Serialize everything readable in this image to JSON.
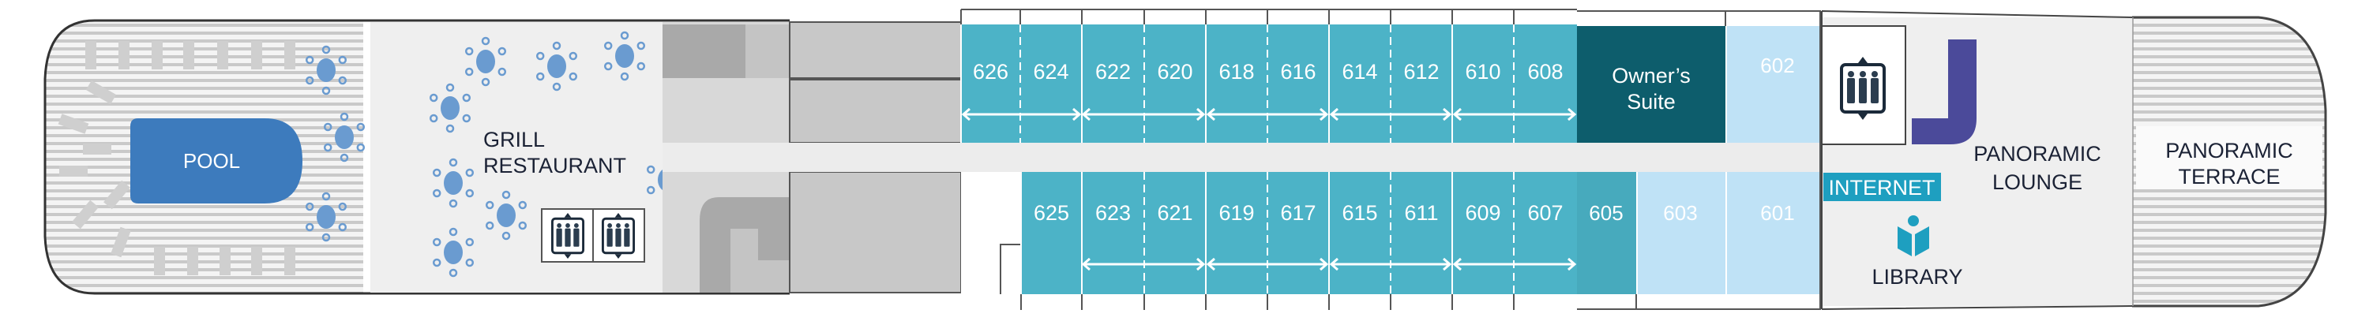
{
  "colors": {
    "cabin": "#4cb3c7",
    "cabin_605": "#47aabd",
    "owners_suite": "#0d5d6c",
    "light_cabin": "#bfe2f6",
    "pool": "#3d7bbd",
    "table": "#6a9bd0",
    "internet": "#1e9fc0",
    "stairs": "#4b4a9a",
    "deck_floor": "#efefef",
    "gray_block": "#c8c8c8",
    "dark_text": "#1b2235"
  },
  "areas": {
    "pool": "POOL",
    "grill_line1": "GRILL",
    "grill_line2": "RESTAURANT",
    "owners_line1": "Owner’s",
    "owners_line2": "Suite",
    "lounge_line1": "PANORAMIC",
    "lounge_line2": "LOUNGE",
    "terrace_line1": "PANORAMIC",
    "terrace_line2": "TERRACE",
    "internet": "INTERNET",
    "library": "LIBRARY"
  },
  "cabins_top": [
    "626",
    "624",
    "622",
    "620",
    "618",
    "616",
    "614",
    "612",
    "610",
    "608"
  ],
  "cabins_bottom": [
    "625",
    "623",
    "621",
    "619",
    "617",
    "615",
    "611",
    "609",
    "607"
  ],
  "cabin_605": "605",
  "cabin_603": "603",
  "cabin_601": "601",
  "cabin_602": "602",
  "icons": [
    "elevator-icon",
    "library-book-icon",
    "stairs-icon",
    "dining-table-icon",
    "sun-lounger-icon"
  ]
}
